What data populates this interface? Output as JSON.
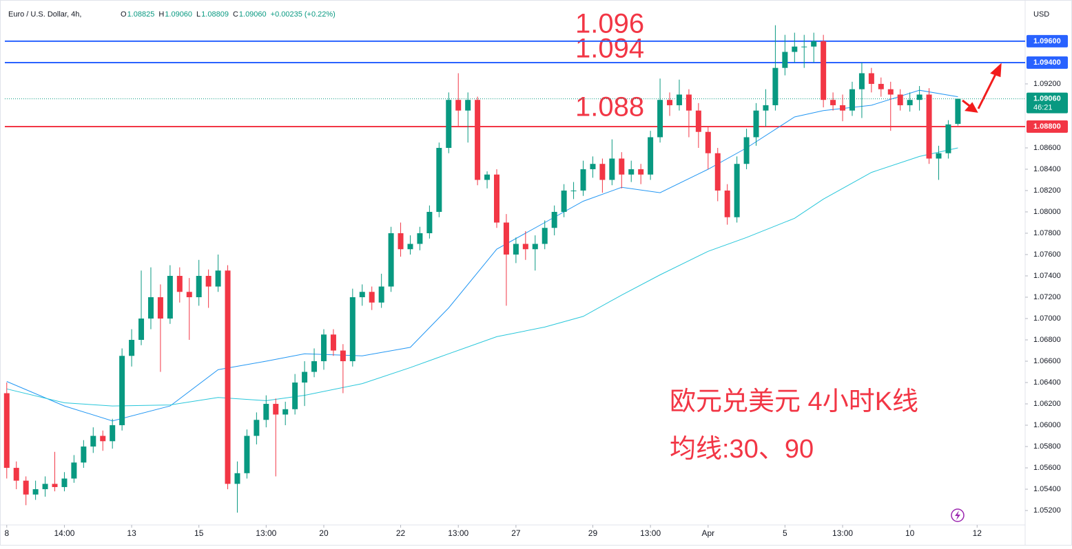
{
  "chart_data": {
    "type": "candlestick",
    "title": "Euro / U.S. Dollar, 4h,",
    "legend_items": [
      {
        "key": "O",
        "value": "1.08825"
      },
      {
        "key": "H",
        "value": "1.09060"
      },
      {
        "key": "L",
        "value": "1.08809"
      },
      {
        "key": "C",
        "value": "1.09060"
      }
    ],
    "change": "+0.00235 (+0.22%)",
    "currency": "USD",
    "up_color": "#089981",
    "down_color": "#f23645",
    "ohlc": [
      [
        1.063,
        1.064,
        1.055,
        1.056
      ],
      [
        1.056,
        1.0566,
        1.054,
        1.0548
      ],
      [
        1.0548,
        1.0552,
        1.0525,
        1.0535
      ],
      [
        1.0535,
        1.0548,
        1.053,
        1.054
      ],
      [
        1.054,
        1.0552,
        1.0533,
        1.0545
      ],
      [
        1.0545,
        1.0575,
        1.0538,
        1.0542
      ],
      [
        1.0542,
        1.0556,
        1.0538,
        1.055
      ],
      [
        1.055,
        1.0572,
        1.0546,
        1.0565
      ],
      [
        1.0565,
        1.0586,
        1.056,
        1.058
      ],
      [
        1.058,
        1.0598,
        1.0574,
        1.059
      ],
      [
        1.059,
        1.0595,
        1.0576,
        1.0585
      ],
      [
        1.0585,
        1.0606,
        1.0578,
        1.06
      ],
      [
        1.06,
        1.0672,
        1.0595,
        1.0665
      ],
      [
        1.0665,
        1.069,
        1.0655,
        1.068
      ],
      [
        1.068,
        1.0745,
        1.0675,
        1.07
      ],
      [
        1.07,
        1.0748,
        1.069,
        1.072
      ],
      [
        1.072,
        1.0732,
        1.065,
        1.07
      ],
      [
        1.07,
        1.075,
        1.0695,
        1.074
      ],
      [
        1.074,
        1.0748,
        1.0715,
        1.0725
      ],
      [
        1.0725,
        1.0738,
        1.068,
        1.072
      ],
      [
        1.072,
        1.0755,
        1.0712,
        1.074
      ],
      [
        1.074,
        1.0746,
        1.071,
        1.073
      ],
      [
        1.073,
        1.076,
        1.0725,
        1.0745
      ],
      [
        1.0745,
        1.075,
        1.054,
        1.0545
      ],
      [
        1.0545,
        1.0566,
        1.0518,
        1.0555
      ],
      [
        1.0555,
        1.0596,
        1.055,
        1.059
      ],
      [
        1.059,
        1.0612,
        1.0582,
        1.0605
      ],
      [
        1.0605,
        1.0628,
        1.0598,
        1.062
      ],
      [
        1.062,
        1.0625,
        1.0552,
        1.061
      ],
      [
        1.061,
        1.0622,
        1.06,
        1.0615
      ],
      [
        1.0615,
        1.0648,
        1.061,
        1.064
      ],
      [
        1.064,
        1.066,
        1.0618,
        1.065
      ],
      [
        1.065,
        1.0672,
        1.0645,
        1.066
      ],
      [
        1.066,
        1.069,
        1.0652,
        1.0685
      ],
      [
        1.0685,
        1.069,
        1.0665,
        1.067
      ],
      [
        1.067,
        1.0676,
        1.063,
        1.066
      ],
      [
        1.066,
        1.0728,
        1.0655,
        1.072
      ],
      [
        1.072,
        1.0732,
        1.0712,
        1.0725
      ],
      [
        1.0725,
        1.073,
        1.0708,
        1.0715
      ],
      [
        1.0715,
        1.0742,
        1.071,
        1.073
      ],
      [
        1.073,
        1.0786,
        1.0725,
        1.078
      ],
      [
        1.078,
        1.079,
        1.0758,
        1.0765
      ],
      [
        1.0765,
        1.0778,
        1.076,
        1.077
      ],
      [
        1.077,
        1.0786,
        1.0764,
        1.078
      ],
      [
        1.078,
        1.0806,
        1.0775,
        1.08
      ],
      [
        1.08,
        1.0865,
        1.0795,
        1.086
      ],
      [
        1.086,
        1.0912,
        1.0855,
        1.0905
      ],
      [
        1.0905,
        1.093,
        1.088,
        1.0895
      ],
      [
        1.0895,
        1.0912,
        1.0865,
        1.0905
      ],
      [
        1.0905,
        1.0908,
        1.0825,
        1.083
      ],
      [
        1.083,
        1.0838,
        1.0822,
        1.0835
      ],
      [
        1.0835,
        1.084,
        1.0785,
        1.079
      ],
      [
        1.079,
        1.0798,
        1.0712,
        1.076
      ],
      [
        1.076,
        1.0776,
        1.0752,
        1.077
      ],
      [
        1.077,
        1.0782,
        1.0755,
        1.0765
      ],
      [
        1.0765,
        1.0778,
        1.0745,
        1.077
      ],
      [
        1.077,
        1.0792,
        1.0765,
        1.0785
      ],
      [
        1.0785,
        1.0806,
        1.0778,
        1.08
      ],
      [
        1.08,
        1.0826,
        1.0795,
        1.082
      ],
      [
        1.082,
        1.0828,
        1.0812,
        1.082
      ],
      [
        1.082,
        1.0848,
        1.0815,
        1.084
      ],
      [
        1.084,
        1.0852,
        1.0832,
        1.0845
      ],
      [
        1.0845,
        1.085,
        1.0818,
        1.083
      ],
      [
        1.083,
        1.0868,
        1.0825,
        1.085
      ],
      [
        1.085,
        1.0856,
        1.0822,
        1.0835
      ],
      [
        1.0835,
        1.0848,
        1.0828,
        1.084
      ],
      [
        1.084,
        1.0845,
        1.0826,
        1.0835
      ],
      [
        1.0835,
        1.0876,
        1.083,
        1.087
      ],
      [
        1.087,
        1.0925,
        1.0865,
        1.0905
      ],
      [
        1.0905,
        1.0912,
        1.089,
        1.09
      ],
      [
        1.09,
        1.0924,
        1.0895,
        1.091
      ],
      [
        1.091,
        1.0915,
        1.087,
        1.0895
      ],
      [
        1.0895,
        1.0902,
        1.086,
        1.0875
      ],
      [
        1.0875,
        1.088,
        1.084,
        1.0855
      ],
      [
        1.0855,
        1.086,
        1.081,
        1.082
      ],
      [
        1.082,
        1.0826,
        1.0788,
        1.0795
      ],
      [
        1.0795,
        1.0852,
        1.079,
        1.0845
      ],
      [
        1.0845,
        1.0878,
        1.084,
        1.087
      ],
      [
        1.087,
        1.0902,
        1.0862,
        1.0895
      ],
      [
        1.0895,
        1.0915,
        1.088,
        1.09
      ],
      [
        1.09,
        1.0975,
        1.0895,
        1.0935
      ],
      [
        1.0935,
        1.0966,
        1.0928,
        1.095
      ],
      [
        1.095,
        1.0968,
        1.094,
        1.0955
      ],
      [
        1.0955,
        1.0966,
        1.0935,
        1.0955
      ],
      [
        1.0955,
        1.0968,
        1.094,
        1.096
      ],
      [
        1.096,
        1.0966,
        1.0898,
        1.0905
      ],
      [
        1.0905,
        1.0912,
        1.0895,
        1.09
      ],
      [
        1.09,
        1.091,
        1.0885,
        1.0895
      ],
      [
        1.0895,
        1.0922,
        1.089,
        1.0915
      ],
      [
        1.0915,
        1.094,
        1.0888,
        1.093
      ],
      [
        1.093,
        1.0935,
        1.0912,
        1.092
      ],
      [
        1.092,
        1.0926,
        1.0908,
        1.0915
      ],
      [
        1.0915,
        1.0922,
        1.0876,
        1.091
      ],
      [
        1.091,
        1.0915,
        1.0895,
        1.09
      ],
      [
        1.09,
        1.0912,
        1.0894,
        1.0905
      ],
      [
        1.0905,
        1.0918,
        1.0895,
        1.091
      ],
      [
        1.091,
        1.0916,
        1.0845,
        1.085
      ],
      [
        1.085,
        1.0862,
        1.083,
        1.0855
      ],
      [
        1.0855,
        1.0886,
        1.085,
        1.0882
      ],
      [
        1.08825,
        1.0906,
        1.08809,
        1.0906
      ]
    ],
    "series": [
      {
        "type": "line",
        "color": "#2196f3",
        "x": [
          0,
          6,
          11,
          17,
          22,
          27,
          31,
          37,
          42,
          46,
          51,
          56,
          60,
          64,
          68,
          73,
          77,
          82,
          85,
          90,
          95,
          99
        ],
        "values": [
          1.0641,
          1.0618,
          1.0604,
          1.0618,
          1.0652,
          1.066,
          1.0667,
          1.0665,
          1.0673,
          1.071,
          1.0765,
          1.079,
          1.081,
          1.0823,
          1.0818,
          1.084,
          1.086,
          1.0889,
          1.0895,
          1.09,
          1.0914,
          1.0908
        ]
      },
      {
        "type": "line",
        "color": "#26c6da",
        "x": [
          0,
          6,
          11,
          17,
          22,
          27,
          31,
          37,
          42,
          46,
          51,
          56,
          60,
          64,
          68,
          73,
          77,
          82,
          85,
          90,
          95,
          99
        ],
        "values": [
          1.0634,
          1.0621,
          1.0618,
          1.0619,
          1.0626,
          1.0623,
          1.0628,
          1.0639,
          1.0654,
          1.0667,
          1.0683,
          1.0692,
          1.0702,
          1.0722,
          1.0741,
          1.0763,
          1.0776,
          1.0794,
          1.0812,
          1.0837,
          1.0852,
          1.086
        ]
      }
    ],
    "xlim": [
      -0.2,
      106
    ],
    "xticks": [
      {
        "value": 0,
        "label": "8"
      },
      {
        "value": 6,
        "label": "14:00"
      },
      {
        "value": 13,
        "label": "13"
      },
      {
        "value": 20,
        "label": "15"
      },
      {
        "value": 27,
        "label": "13:00"
      },
      {
        "value": 33,
        "label": "20"
      },
      {
        "value": 41,
        "label": "22"
      },
      {
        "value": 47,
        "label": "13:00"
      },
      {
        "value": 53,
        "label": "27"
      },
      {
        "value": 61,
        "label": "29"
      },
      {
        "value": 67,
        "label": "13:00"
      },
      {
        "value": 73,
        "label": "Apr"
      },
      {
        "value": 81,
        "label": "5"
      },
      {
        "value": 87,
        "label": "13:00"
      },
      {
        "value": 94,
        "label": "10"
      },
      {
        "value": 101,
        "label": "12"
      }
    ],
    "ylim": [
      1.05065,
      1.09935
    ],
    "yticks": [
      {
        "value": 1.052,
        "label": "1.05200"
      },
      {
        "value": 1.054,
        "label": "1.05400"
      },
      {
        "value": 1.056,
        "label": "1.05600"
      },
      {
        "value": 1.058,
        "label": "1.05800"
      },
      {
        "value": 1.06,
        "label": "1.06000"
      },
      {
        "value": 1.062,
        "label": "1.06200"
      },
      {
        "value": 1.064,
        "label": "1.06400"
      },
      {
        "value": 1.066,
        "label": "1.06600"
      },
      {
        "value": 1.068,
        "label": "1.06800"
      },
      {
        "value": 1.07,
        "label": "1.07000"
      },
      {
        "value": 1.072,
        "label": "1.07200"
      },
      {
        "value": 1.074,
        "label": "1.07400"
      },
      {
        "value": 1.076,
        "label": "1.07600"
      },
      {
        "value": 1.078,
        "label": "1.07800"
      },
      {
        "value": 1.08,
        "label": "1.08000"
      },
      {
        "value": 1.082,
        "label": "1.08200"
      },
      {
        "value": 1.084,
        "label": "1.08400"
      },
      {
        "value": 1.086,
        "label": "1.08600"
      },
      {
        "value": 1.092,
        "label": "1.09200"
      }
    ],
    "grid": false,
    "levels": [
      {
        "value": 1.096,
        "label": "1.09600",
        "color": "#2962ff"
      },
      {
        "value": 1.094,
        "label": "1.09400",
        "color": "#2962ff"
      },
      {
        "value": 1.088,
        "label": "1.08800",
        "color": "#f23645"
      }
    ],
    "last_price": {
      "value": 1.0906,
      "label": "1.09060",
      "countdown": "46:21",
      "color": "#089981"
    },
    "annotations": [
      "1.096",
      "1.094",
      "1.088"
    ],
    "notes": [
      "欧元兑美元 4小时K线",
      "均线:30、90"
    ]
  }
}
